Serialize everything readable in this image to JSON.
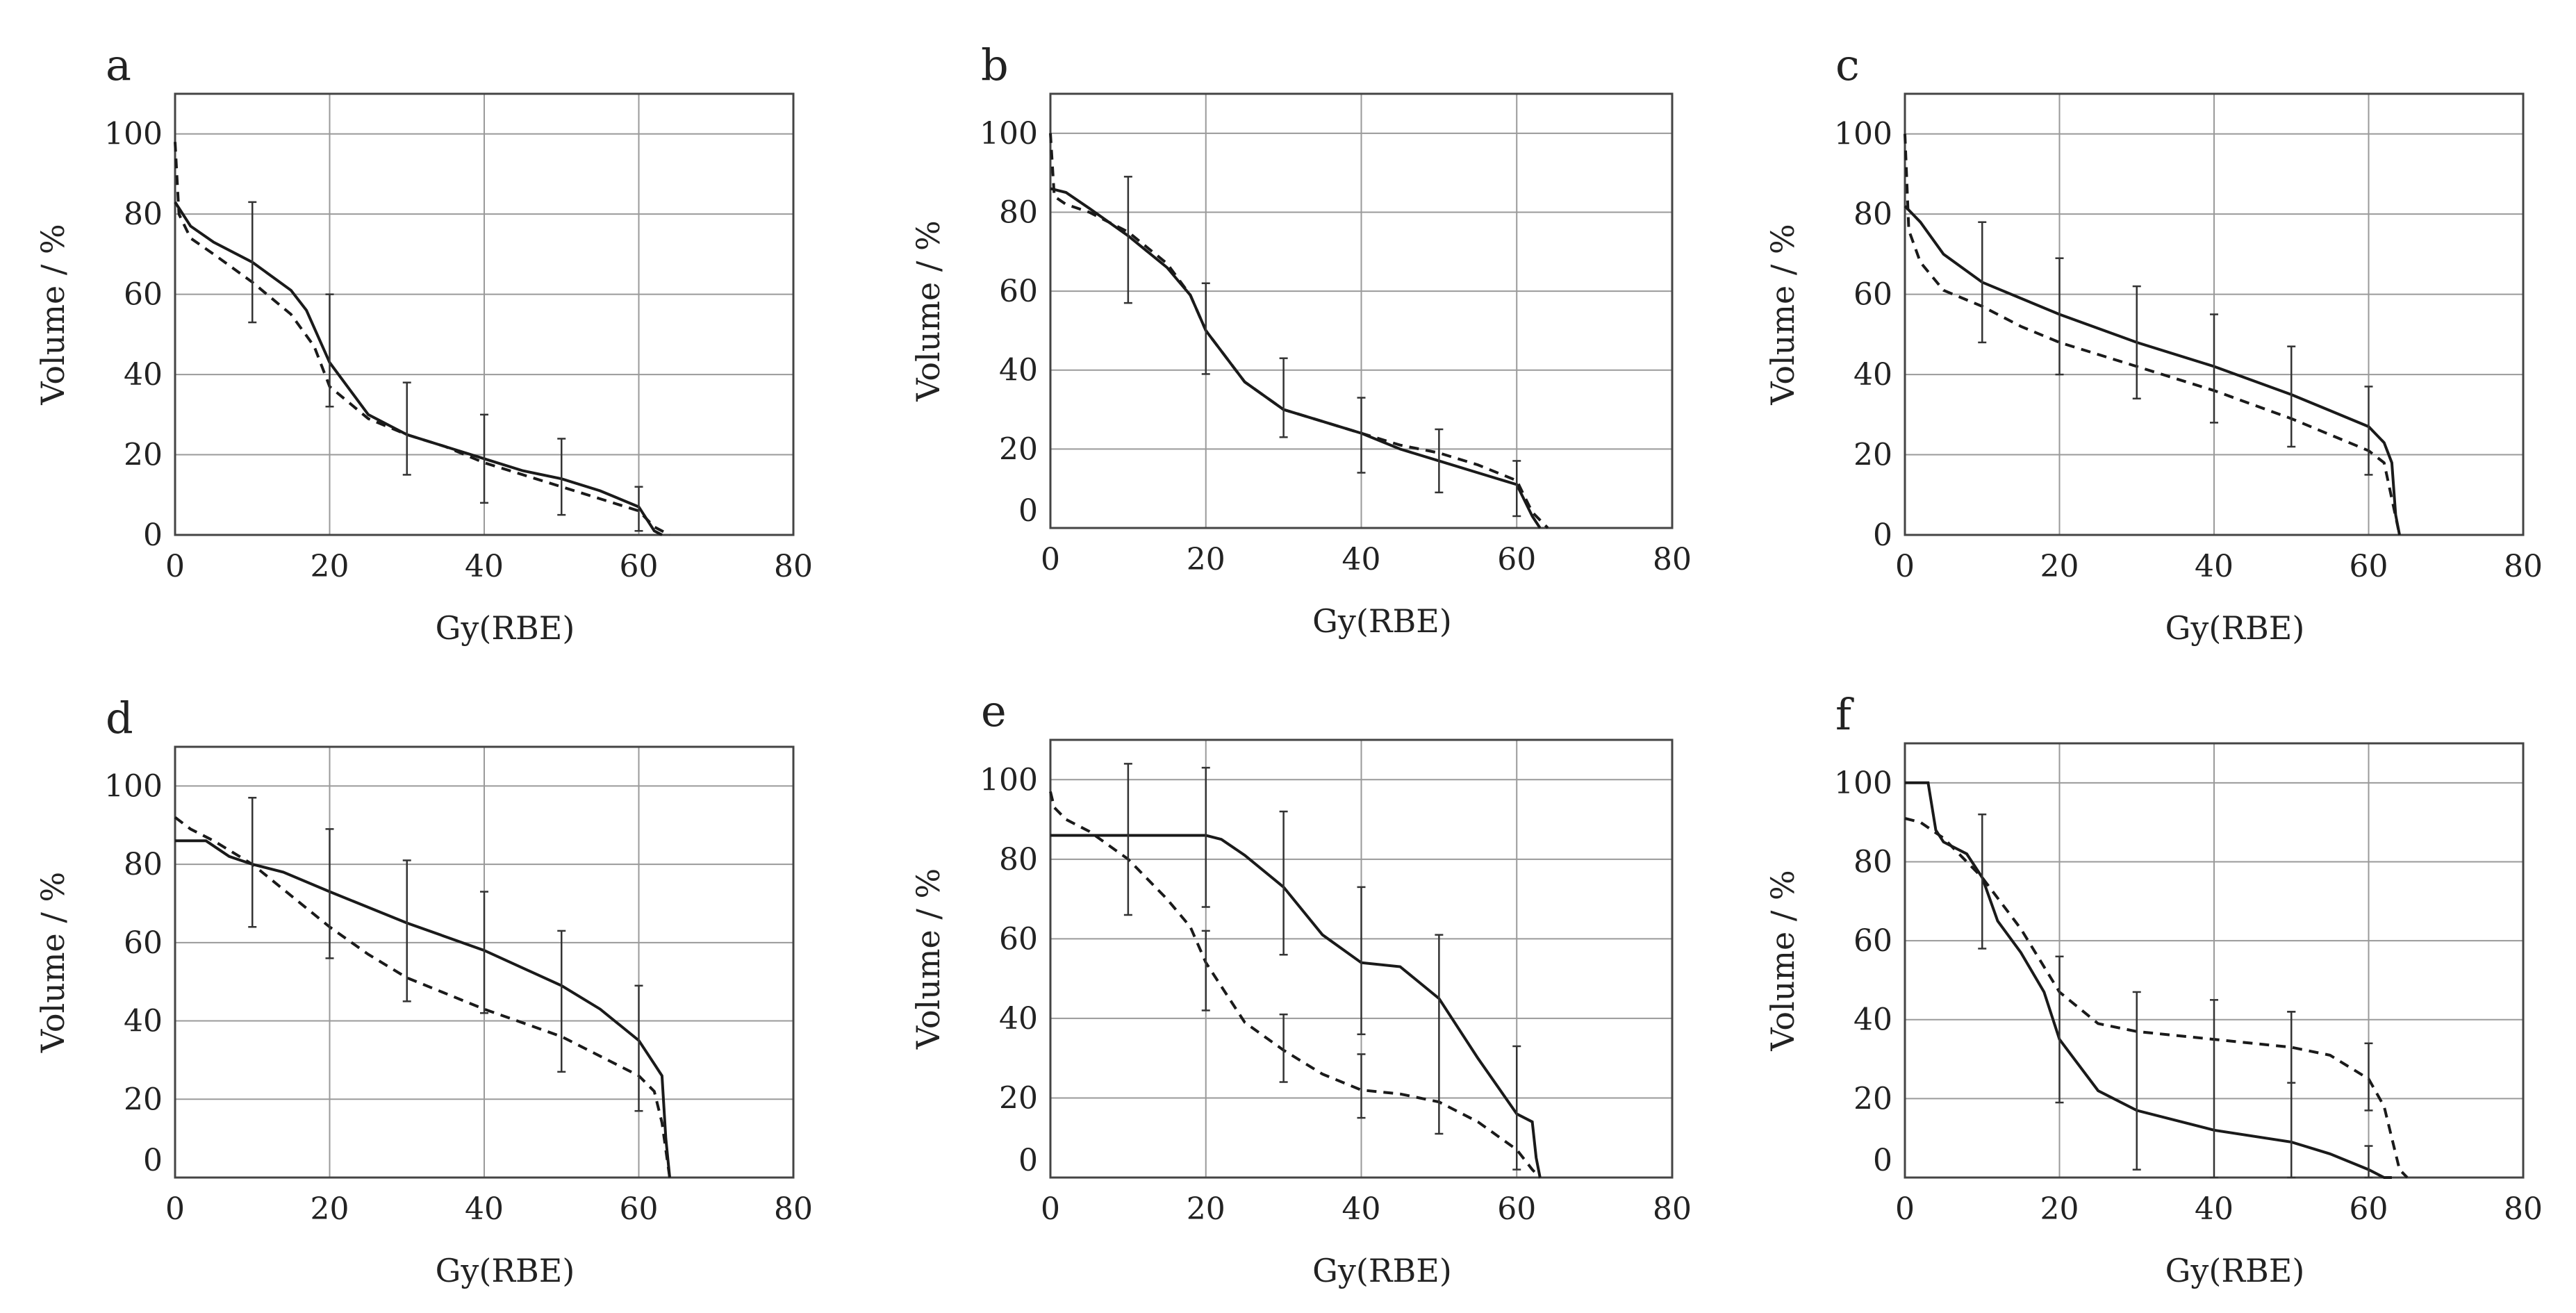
{
  "figure": {
    "panels": [
      {
        "label": "a",
        "xlabel": "Gy(RBE)",
        "ylabel": "Volume / %"
      },
      {
        "label": "b",
        "xlabel": "Gy(RBE)",
        "ylabel": "Volume / %"
      },
      {
        "label": "c",
        "xlabel": "Gy(RBE)",
        "ylabel": "Volume / %"
      },
      {
        "label": "d",
        "xlabel": "Gy(RBE)",
        "ylabel": "Volume / %"
      },
      {
        "label": "e",
        "xlabel": "Gy(RBE)",
        "ylabel": "Volume / %"
      },
      {
        "label": "f",
        "xlabel": "Gy(RBE)",
        "ylabel": "Volume / %"
      }
    ]
  },
  "chart_data": [
    {
      "panel": "a",
      "type": "line",
      "xlabel": "Gy(RBE)",
      "ylabel": "Volume / %",
      "xlim": [
        0,
        80
      ],
      "ylim": [
        0,
        110
      ],
      "xticks": [
        0,
        20,
        40,
        60,
        80
      ],
      "yticks": [
        0,
        20,
        40,
        60,
        80,
        100
      ],
      "grid": true,
      "series": [
        {
          "name": "solid",
          "style": "solid",
          "x": [
            0,
            2,
            5,
            10,
            15,
            17,
            20,
            25,
            30,
            35,
            40,
            45,
            50,
            55,
            60,
            62,
            63
          ],
          "y": [
            83,
            77,
            73,
            68,
            61,
            56,
            43,
            30,
            25,
            22,
            19,
            16,
            14,
            11,
            7,
            1,
            0
          ]
        },
        {
          "name": "dashed",
          "style": "dashed",
          "x": [
            0,
            0.5,
            2,
            5,
            10,
            15,
            18,
            20,
            25,
            30,
            35,
            40,
            45,
            50,
            55,
            60,
            62,
            64
          ],
          "y": [
            98,
            80,
            74,
            70,
            63,
            55,
            47,
            37,
            29,
            25,
            22,
            18,
            15,
            12,
            9,
            6,
            2,
            0
          ]
        }
      ],
      "error_bars": [
        {
          "x": 10,
          "y": 68,
          "low": 53,
          "high": 83
        },
        {
          "x": 20,
          "y": 43,
          "low": 32,
          "high": 60
        },
        {
          "x": 30,
          "y": 26,
          "low": 15,
          "high": 38
        },
        {
          "x": 40,
          "y": 19,
          "low": 8,
          "high": 30
        },
        {
          "x": 50,
          "y": 14,
          "low": 5,
          "high": 24
        },
        {
          "x": 60,
          "y": 7,
          "low": 1,
          "high": 12
        }
      ]
    },
    {
      "panel": "b",
      "type": "line",
      "xlabel": "Gy(RBE)",
      "ylabel": "Volume / %",
      "xlim": [
        0,
        80
      ],
      "ylim": [
        0,
        110
      ],
      "xticks": [
        0,
        20,
        40,
        60,
        80
      ],
      "yticks": [
        20,
        40,
        60,
        80,
        100
      ],
      "yextra": "0",
      "grid": true,
      "series": [
        {
          "name": "solid",
          "style": "solid",
          "x": [
            0,
            2,
            5,
            10,
            15,
            18,
            20,
            25,
            30,
            35,
            40,
            45,
            50,
            55,
            60,
            62,
            63
          ],
          "y": [
            86,
            85,
            81,
            74,
            66,
            59,
            50,
            37,
            30,
            27,
            24,
            20,
            17,
            14,
            11,
            3,
            0
          ]
        },
        {
          "name": "dashed",
          "style": "dashed",
          "x": [
            0,
            0.5,
            2,
            5,
            10,
            15,
            18,
            20,
            25,
            30,
            35,
            40,
            45,
            50,
            55,
            60,
            62,
            64
          ],
          "y": [
            100,
            84,
            82,
            80,
            75,
            67,
            59,
            50,
            37,
            30,
            27,
            24,
            21,
            19,
            16,
            12,
            4,
            0
          ]
        }
      ],
      "error_bars": [
        {
          "x": 10,
          "y": 74,
          "low": 57,
          "high": 89
        },
        {
          "x": 20,
          "y": 50,
          "low": 39,
          "high": 62
        },
        {
          "x": 30,
          "y": 30,
          "low": 23,
          "high": 43
        },
        {
          "x": 40,
          "y": 24,
          "low": 14,
          "high": 33
        },
        {
          "x": 50,
          "y": 18,
          "low": 9,
          "high": 25
        },
        {
          "x": 60,
          "y": 11,
          "low": 3,
          "high": 17
        }
      ]
    },
    {
      "panel": "c",
      "type": "line",
      "xlabel": "Gy(RBE)",
      "ylabel": "Volume / %",
      "xlim": [
        0,
        80
      ],
      "ylim": [
        0,
        110
      ],
      "xticks": [
        0,
        20,
        40,
        60,
        80
      ],
      "yticks": [
        0,
        20,
        40,
        60,
        80,
        100
      ],
      "grid": true,
      "series": [
        {
          "name": "solid",
          "style": "solid",
          "x": [
            0,
            2,
            5,
            10,
            15,
            20,
            30,
            40,
            50,
            55,
            60,
            62,
            63,
            63.5,
            64
          ],
          "y": [
            82,
            78,
            70,
            63,
            59,
            55,
            48,
            42,
            35,
            31,
            27,
            23,
            18,
            5,
            0
          ]
        },
        {
          "name": "dashed",
          "style": "dashed",
          "x": [
            0,
            0.5,
            2,
            5,
            10,
            15,
            20,
            30,
            40,
            50,
            55,
            60,
            62,
            63,
            64
          ],
          "y": [
            100,
            76,
            68,
            61,
            57,
            52,
            48,
            42,
            36,
            29,
            25,
            21,
            18,
            9,
            0
          ]
        }
      ],
      "error_bars": [
        {
          "x": 10,
          "y": 62,
          "low": 48,
          "high": 78
        },
        {
          "x": 20,
          "y": 54,
          "low": 40,
          "high": 69
        },
        {
          "x": 30,
          "y": 47,
          "low": 34,
          "high": 62
        },
        {
          "x": 40,
          "y": 41,
          "low": 28,
          "high": 55
        },
        {
          "x": 50,
          "y": 34,
          "low": 22,
          "high": 47
        },
        {
          "x": 60,
          "y": 27,
          "low": 15,
          "high": 37
        }
      ]
    },
    {
      "panel": "d",
      "type": "line",
      "xlabel": "Gy(RBE)",
      "ylabel": "Volume / %",
      "xlim": [
        0,
        80
      ],
      "ylim": [
        0,
        110
      ],
      "xticks": [
        0,
        20,
        40,
        60,
        80
      ],
      "yticks": [
        20,
        40,
        60,
        80,
        100
      ],
      "yextra": "0",
      "grid": true,
      "series": [
        {
          "name": "solid",
          "style": "solid",
          "x": [
            0,
            4,
            7,
            10,
            14,
            20,
            30,
            40,
            50,
            55,
            60,
            62,
            63,
            63.5,
            64
          ],
          "y": [
            86,
            86,
            82,
            80,
            78,
            73,
            65,
            58,
            49,
            43,
            35,
            29,
            26,
            10,
            0
          ]
        },
        {
          "name": "dashed",
          "style": "dashed",
          "x": [
            0,
            2,
            5,
            10,
            15,
            20,
            25,
            30,
            40,
            50,
            55,
            60,
            62,
            63,
            64
          ],
          "y": [
            92,
            89,
            86,
            80,
            72,
            64,
            57,
            51,
            43,
            36,
            31,
            26,
            22,
            14,
            0
          ]
        }
      ],
      "error_bars": [
        {
          "x": 10,
          "y": 80,
          "low": 64,
          "high": 97
        },
        {
          "x": 20,
          "y": 73,
          "low": 56,
          "high": 89
        },
        {
          "x": 30,
          "y": 65,
          "low": 45,
          "high": 81
        },
        {
          "x": 40,
          "y": 57,
          "low": 42,
          "high": 73
        },
        {
          "x": 50,
          "y": 48,
          "low": 27,
          "high": 63
        },
        {
          "x": 60,
          "y": 33,
          "low": 17,
          "high": 49
        }
      ]
    },
    {
      "panel": "e",
      "type": "line",
      "xlabel": "Gy(RBE)",
      "ylabel": "Volume / %",
      "xlim": [
        0,
        80
      ],
      "ylim": [
        0,
        110
      ],
      "xticks": [
        0,
        20,
        40,
        60,
        80
      ],
      "yticks": [
        20,
        40,
        60,
        80,
        100
      ],
      "yextra": "0",
      "grid": true,
      "series": [
        {
          "name": "solid",
          "style": "solid",
          "x": [
            0,
            10,
            20,
            22,
            25,
            30,
            35,
            40,
            45,
            50,
            55,
            60,
            62,
            62.5,
            63
          ],
          "y": [
            86,
            86,
            86,
            85,
            81,
            73,
            61,
            54,
            53,
            45,
            30,
            16,
            14,
            5,
            0
          ]
        },
        {
          "name": "dashed",
          "style": "dashed",
          "x": [
            0,
            0.5,
            2,
            5,
            10,
            15,
            18,
            20,
            25,
            30,
            35,
            40,
            45,
            50,
            55,
            60,
            62,
            63
          ],
          "y": [
            97,
            93,
            90,
            87,
            80,
            70,
            63,
            54,
            39,
            32,
            26,
            22,
            21,
            19,
            14,
            7,
            2,
            0
          ]
        }
      ],
      "error_bars": [
        {
          "x": 10,
          "y": 80,
          "low": 66,
          "high": 104
        },
        {
          "x": 20,
          "y": 86,
          "low": 68,
          "high": 103
        },
        {
          "x": 20,
          "y": 54,
          "low": 42,
          "high": 62
        },
        {
          "x": 30,
          "y": 73,
          "low": 56,
          "high": 92
        },
        {
          "x": 30,
          "y": 32,
          "low": 24,
          "high": 41
        },
        {
          "x": 40,
          "y": 54,
          "low": 36,
          "high": 73
        },
        {
          "x": 40,
          "y": 22,
          "low": 15,
          "high": 31
        },
        {
          "x": 50,
          "y": 45,
          "low": 11,
          "high": 61
        },
        {
          "x": 60,
          "y": 16,
          "low": 2,
          "high": 33
        }
      ]
    },
    {
      "panel": "f",
      "type": "line",
      "xlabel": "Gy(RBE)",
      "ylabel": "Volume / %",
      "xlim": [
        0,
        80
      ],
      "ylim": [
        0,
        110
      ],
      "xticks": [
        0,
        20,
        40,
        60,
        80
      ],
      "yticks": [
        20,
        40,
        60,
        80,
        100
      ],
      "yextra": "0",
      "grid": true,
      "series": [
        {
          "name": "solid",
          "style": "solid",
          "x": [
            0,
            2,
            3,
            4,
            5,
            8,
            10,
            12,
            15,
            18,
            20,
            25,
            30,
            40,
            50,
            55,
            60,
            62,
            63
          ],
          "y": [
            100,
            100,
            100,
            88,
            85,
            82,
            76,
            65,
            57,
            47,
            35,
            22,
            17,
            12,
            9,
            6,
            2,
            0,
            0
          ]
        },
        {
          "name": "dashed",
          "style": "dashed",
          "x": [
            0,
            2,
            5,
            10,
            15,
            20,
            25,
            30,
            40,
            50,
            55,
            60,
            62,
            63,
            64,
            65
          ],
          "y": [
            91,
            90,
            86,
            76,
            63,
            47,
            39,
            37,
            35,
            33,
            31,
            25,
            18,
            10,
            2,
            0
          ]
        }
      ],
      "error_bars": [
        {
          "x": 10,
          "y": 76,
          "low": 58,
          "high": 92
        },
        {
          "x": 20,
          "y": 35,
          "low": 19,
          "high": 56
        },
        {
          "x": 30,
          "y": 17,
          "low": 2,
          "high": 47
        },
        {
          "x": 40,
          "y": 12,
          "low": 0,
          "high": 45
        },
        {
          "x": 50,
          "y": 9,
          "low": 0,
          "high": 42
        },
        {
          "x": 50,
          "y": 33,
          "low": 24,
          "high": 42
        },
        {
          "x": 60,
          "y": 25,
          "low": 17,
          "high": 34
        },
        {
          "x": 60,
          "y": 2,
          "low": 0,
          "high": 8
        }
      ]
    }
  ]
}
